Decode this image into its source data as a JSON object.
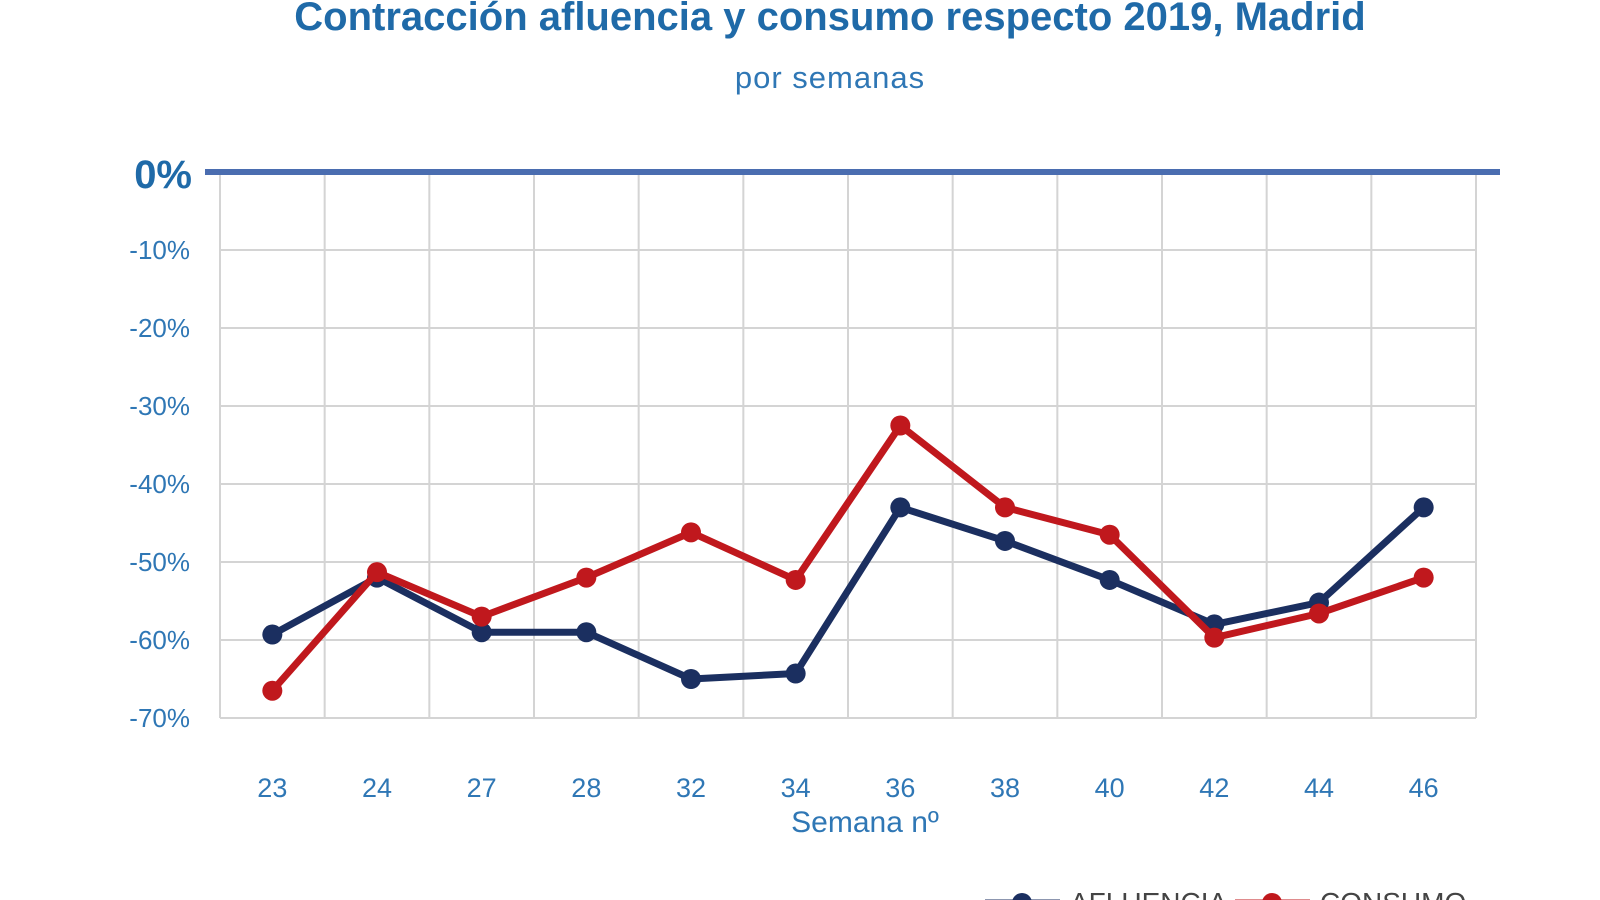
{
  "chart_data": {
    "type": "line",
    "title": "Contracción afluencia y consumo respecto 2019, Madrid",
    "subtitle": "por semanas",
    "xlabel": "Semana nº",
    "ylabel": "",
    "categories": [
      "23",
      "24",
      "27",
      "28",
      "32",
      "34",
      "36",
      "38",
      "40",
      "42",
      "44",
      "46"
    ],
    "ylim": [
      -70,
      0
    ],
    "yticks": [
      {
        "value": 0,
        "label": "0%"
      },
      {
        "value": -10,
        "label": "-10%"
      },
      {
        "value": -20,
        "label": "-20%"
      },
      {
        "value": -30,
        "label": "-30%"
      },
      {
        "value": -40,
        "label": "-40%"
      },
      {
        "value": -50,
        "label": "-50%"
      },
      {
        "value": -60,
        "label": "-60%"
      },
      {
        "value": -70,
        "label": "-70%"
      }
    ],
    "grid": true,
    "legend_position": "bottom-right",
    "series": [
      {
        "name": "AFLUENCIA",
        "color": "#1b2f60",
        "values": [
          -59.3,
          -52,
          -59,
          -59,
          -65,
          -64.3,
          -43,
          -47.3,
          -52.3,
          -58,
          -55.2,
          -43
        ]
      },
      {
        "name": "CONSUMO",
        "color": "#c0181d",
        "values": [
          -66.5,
          -51.3,
          -57,
          -52,
          -46.2,
          -52.3,
          -32.5,
          -43,
          -46.5,
          -59.7,
          -56.6,
          -52
        ]
      }
    ],
    "zero_line_color": "#4a6db0"
  }
}
